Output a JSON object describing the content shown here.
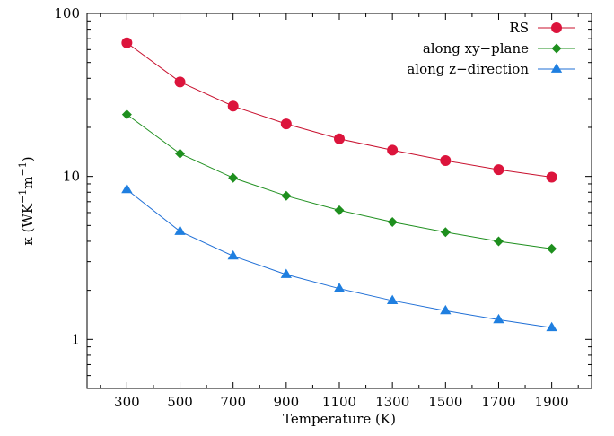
{
  "chart_data": {
    "type": "line",
    "x_label": "Temperature (K)",
    "y_label": {
      "base": "κ (WK",
      "exp1": "−1",
      "mid": "m",
      "exp2": "−1",
      "end": ")"
    },
    "x_ticks": [
      "300",
      "500",
      "700",
      "900",
      "1100",
      "1300",
      "1500",
      "1700",
      "1900"
    ],
    "y_ticks": [
      {
        "value": 1,
        "label": "1"
      },
      {
        "value": 10,
        "label": "10"
      },
      {
        "value": 100,
        "label": "100"
      }
    ],
    "xlim": [
      150,
      2050
    ],
    "ylim": [
      0.5,
      100
    ],
    "y_scale": "log",
    "grid": false,
    "legend_position": "top-right",
    "x": [
      300,
      500,
      700,
      900,
      1100,
      1300,
      1500,
      1700,
      1900
    ],
    "series": [
      {
        "name": "RS",
        "marker": "circle",
        "line_color": "#c8102e",
        "marker_color": "#dc143c",
        "values": [
          66,
          38,
          27,
          21,
          17,
          14.5,
          12.5,
          11,
          9.9
        ]
      },
      {
        "name": "along xy−plane",
        "marker": "diamond",
        "line_color": "#1e8f1e",
        "marker_color": "#1e8f1e",
        "values": [
          24,
          13.8,
          9.8,
          7.6,
          6.2,
          5.25,
          4.55,
          4.0,
          3.6
        ]
      },
      {
        "name": "along z−direction",
        "marker": "triangle",
        "line_color": "#1f6fd6",
        "marker_color": "#1f7fe0",
        "values": [
          8.3,
          4.6,
          3.25,
          2.5,
          2.05,
          1.73,
          1.5,
          1.32,
          1.18
        ]
      }
    ]
  }
}
